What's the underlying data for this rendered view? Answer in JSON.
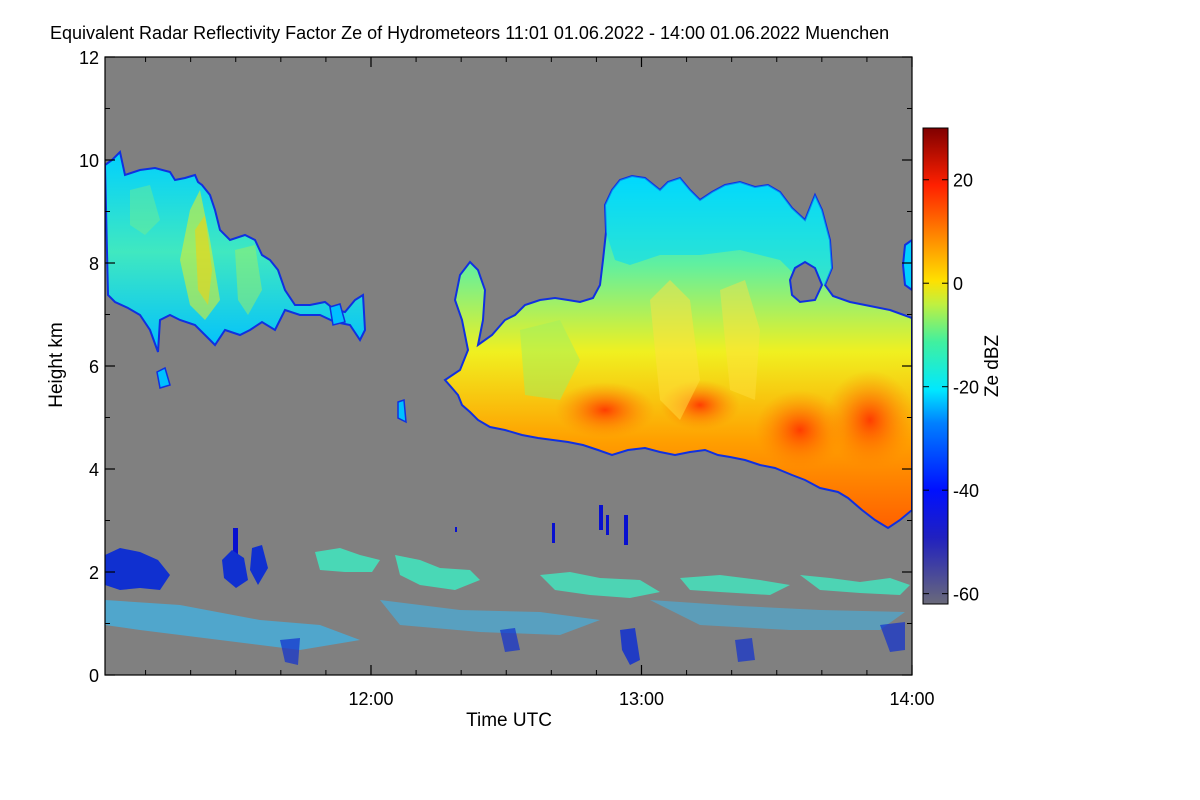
{
  "chart_data": {
    "type": "heatmap",
    "title": "Equivalent Radar Reflectivity Factor Ze of Hydrometeors",
    "time_range": "11:01 01.06.2022 - 14:00 01.06.2022",
    "location": "Muenchen",
    "xlabel": "Time UTC",
    "ylabel": "Height km",
    "x_range_utc": [
      "11:01",
      "14:00"
    ],
    "x_tick_labels": [
      "12:00",
      "13:00",
      "14:00"
    ],
    "x_major_ticks_hours": [
      12,
      13,
      14
    ],
    "ylim": [
      0,
      12
    ],
    "y_tick_values": [
      0,
      2,
      4,
      6,
      8,
      10,
      12
    ],
    "y_tick_labels": [
      "0",
      "2",
      "4",
      "6",
      "8",
      "10",
      "12"
    ],
    "colorbar": {
      "label": "Ze dBZ",
      "range": [
        -62,
        30
      ],
      "tick_values": [
        -60,
        -40,
        -20,
        0,
        20
      ],
      "tick_labels": [
        "-60",
        "-40",
        "-20",
        "0",
        "20"
      ]
    },
    "background_color": "#808080",
    "colors": {
      "no_signal": "#808080",
      "colormap_low": "#5a5a6e",
      "colormap_blue": "#0010e0",
      "colormap_cyan": "#00e8ff",
      "colormap_yellow": "#ffe000",
      "colormap_red": "#ff2000",
      "colormap_high": "#800000"
    },
    "features": [
      {
        "name": "cirrus-cloud-left",
        "t_start": "11:01",
        "t_end": "11:58",
        "base_km": 6.5,
        "top_km": 10.0,
        "ze_range_dbz": [
          -40,
          -5
        ]
      },
      {
        "name": "precipitating-cloud-right",
        "t_start": "12:16",
        "t_end": "14:00",
        "base_km": 4.0,
        "top_km": 9.5,
        "ze_range_dbz": [
          -40,
          15
        ]
      },
      {
        "name": "boundary-layer-clutter",
        "t_start": "11:01",
        "t_end": "14:00",
        "base_km": 0.2,
        "top_km": 2.5,
        "ze_range_dbz": [
          -50,
          -20
        ]
      }
    ]
  }
}
